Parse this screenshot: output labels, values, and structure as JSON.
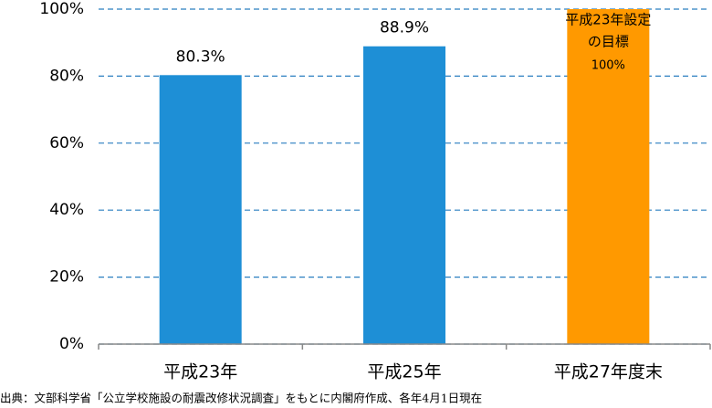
{
  "chart_data": {
    "type": "bar",
    "categories": [
      "平成23年",
      "平成25年",
      "平成27年度末"
    ],
    "values": [
      80.3,
      88.9,
      100
    ],
    "value_labels": [
      "80.3%",
      "88.9%",
      "100%"
    ],
    "colors": [
      "#1e8fd6",
      "#1e8fd6",
      "#ff9900"
    ],
    "annotation": [
      "平成23年設定",
      "の目標"
    ],
    "ylim": [
      0,
      100
    ],
    "yticks": [
      {
        "value": 0,
        "label": "0%"
      },
      {
        "value": 20,
        "label": "20%"
      },
      {
        "value": 40,
        "label": "40%"
      },
      {
        "value": 60,
        "label": "60%"
      },
      {
        "value": 80,
        "label": "80%"
      },
      {
        "value": 100,
        "label": "100%"
      }
    ],
    "grid": true,
    "source": "出典：文部科学省「公立学校施設の耐震改修状況調査」をもとに内閣府作成、各年4月1日現在"
  }
}
